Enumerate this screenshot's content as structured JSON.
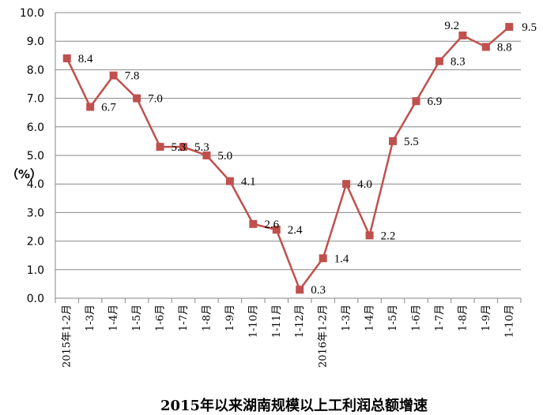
{
  "chart_data": {
    "type": "line",
    "title": "2015年以来湖南规模以上工利润总额增速",
    "ylabel": "（%）",
    "xlabel": "",
    "ylim": [
      0,
      10
    ],
    "yticks": [
      "0.0",
      "1.0",
      "2.0",
      "3.0",
      "4.0",
      "5.0",
      "6.0",
      "7.0",
      "8.0",
      "9.0",
      "10.0"
    ],
    "grid": true,
    "legend": "none",
    "categories": [
      "2015年1-2月",
      "1-3月",
      "1-4月",
      "1-5月",
      "1-6月",
      "1-7月",
      "1-8月",
      "1-9月",
      "1-10月",
      "1-11月",
      "1-12月",
      "2016年1-2月",
      "1-3月",
      "1-4月",
      "1-5月",
      "1-6月",
      "1-7月",
      "1-8月",
      "1-9月",
      "1-10月"
    ],
    "series": [
      {
        "values": [
          8.4,
          6.7,
          7.8,
          7.0,
          5.3,
          5.3,
          5.0,
          4.1,
          2.6,
          2.4,
          0.3,
          1.4,
          4.0,
          2.2,
          5.5,
          6.9,
          8.3,
          9.2,
          8.8,
          9.5
        ],
        "labels": [
          "8.4",
          "6.7",
          "7.8",
          "7.0",
          "5.3",
          "5.3",
          "5.0",
          "4.1",
          "2.6",
          "2.4",
          "0.3",
          "1.4",
          "4.0",
          "2.2",
          "5.5",
          "6.9",
          "8.3",
          "9.2",
          "8.8",
          "9.5"
        ],
        "color": "#c0504d"
      }
    ],
    "colors": {
      "line": "#c0504d",
      "grid": "#868686",
      "axis": "#868686"
    }
  }
}
